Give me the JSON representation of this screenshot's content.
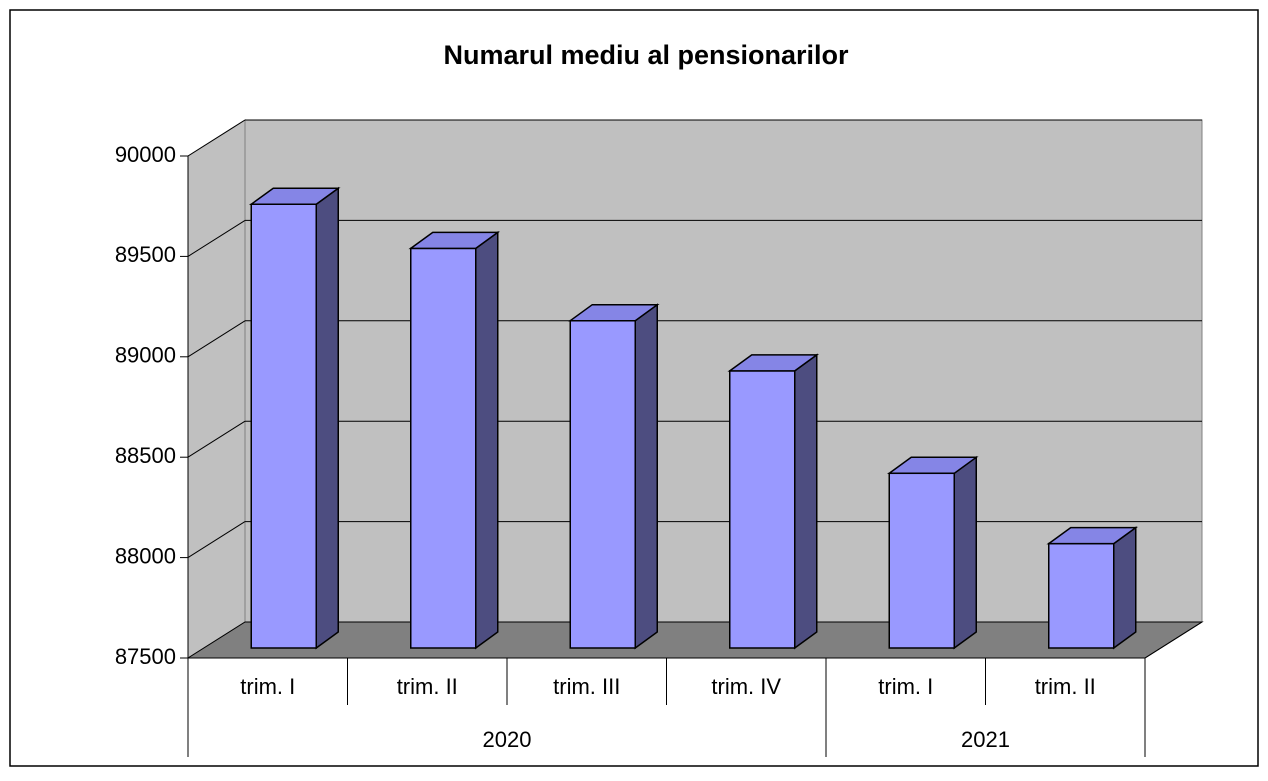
{
  "chart_data": {
    "type": "bar3d",
    "title": "Numarul mediu al pensionarilor",
    "categories": [
      "trim. I",
      "trim. II",
      "trim. III",
      "trim. IV",
      "trim. I",
      "trim. II"
    ],
    "groups": [
      {
        "label": "2020",
        "count": 4
      },
      {
        "label": "2021",
        "count": 2
      }
    ],
    "values": [
      89710,
      89490,
      89130,
      88880,
      88370,
      88020
    ],
    "colors": {
      "front": "#9999ff",
      "side": "#4d4d80",
      "top": "#8585e6",
      "wall": "#c0c0c0",
      "floor": "#808080"
    },
    "ylim": [
      87500,
      90000
    ],
    "yticks": [
      87500,
      88000,
      88500,
      89000,
      89500,
      90000
    ],
    "grid": true
  }
}
